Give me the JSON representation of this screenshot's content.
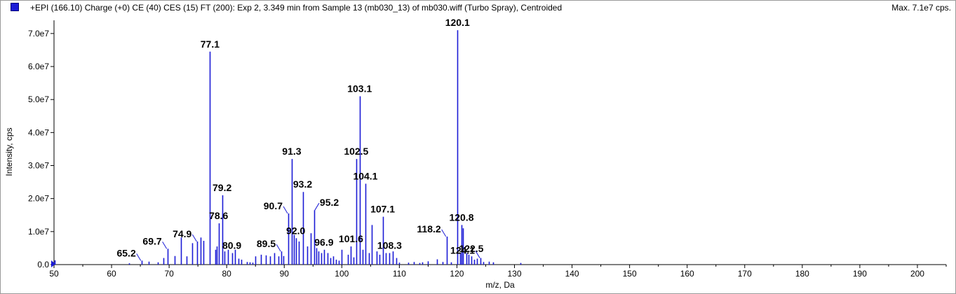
{
  "header": {
    "title": "+EPI (166.10) Charge (+0) CE (40) CES (15) FT (200): Exp 2, 3.349 min from Sample 13 (mb030_13) of mb030.wiff (Turbo Spray), Centroided",
    "max_label": "Max. 7.1e7 cps."
  },
  "colors": {
    "series": "#1b1bd6",
    "axis": "#000000",
    "leader": "#1b1bd6",
    "background": "#ffffff"
  },
  "chart_data": {
    "type": "bar",
    "xlabel": "m/z, Da",
    "ylabel": "Intensity, cps",
    "xlim": [
      50,
      205
    ],
    "ylim": [
      0,
      74000000
    ],
    "x_ticks": [
      50,
      60,
      70,
      80,
      90,
      100,
      110,
      120,
      130,
      140,
      150,
      160,
      170,
      180,
      190,
      200
    ],
    "y_ticks": [
      {
        "value": 0,
        "label": "0.0"
      },
      {
        "value": 10000000,
        "label": "1.0e7"
      },
      {
        "value": 20000000,
        "label": "2.0e7"
      },
      {
        "value": 30000000,
        "label": "3.0e7"
      },
      {
        "value": 40000000,
        "label": "4.0e7"
      },
      {
        "value": 50000000,
        "label": "5.0e7"
      },
      {
        "value": 60000000,
        "label": "6.0e7"
      },
      {
        "value": 70000000,
        "label": "7.0e7"
      }
    ],
    "peaks": [
      {
        "x": 50.1,
        "y": 1300000
      },
      {
        "x": 63.0,
        "y": 400000
      },
      {
        "x": 65.2,
        "y": 1200000
      },
      {
        "x": 66.5,
        "y": 900000
      },
      {
        "x": 68.0,
        "y": 700000
      },
      {
        "x": 69.0,
        "y": 2000000
      },
      {
        "x": 69.7,
        "y": 4800000
      },
      {
        "x": 71.0,
        "y": 2600000
      },
      {
        "x": 72.0,
        "y": 8200000
      },
      {
        "x": 73.0,
        "y": 2500000
      },
      {
        "x": 74.0,
        "y": 6500000
      },
      {
        "x": 74.9,
        "y": 7000000
      },
      {
        "x": 75.5,
        "y": 8200000
      },
      {
        "x": 76.0,
        "y": 7200000
      },
      {
        "x": 77.1,
        "y": 64500000
      },
      {
        "x": 78.0,
        "y": 4500000
      },
      {
        "x": 78.3,
        "y": 5500000
      },
      {
        "x": 78.6,
        "y": 12500000
      },
      {
        "x": 79.2,
        "y": 21000000
      },
      {
        "x": 79.6,
        "y": 4000000
      },
      {
        "x": 80.2,
        "y": 4500000
      },
      {
        "x": 80.9,
        "y": 3500000
      },
      {
        "x": 81.4,
        "y": 4500000
      },
      {
        "x": 82.0,
        "y": 1800000
      },
      {
        "x": 82.5,
        "y": 1500000
      },
      {
        "x": 83.5,
        "y": 800000
      },
      {
        "x": 84.0,
        "y": 700000
      },
      {
        "x": 84.5,
        "y": 600000
      },
      {
        "x": 85.0,
        "y": 2500000
      },
      {
        "x": 86.0,
        "y": 3000000
      },
      {
        "x": 86.8,
        "y": 2800000
      },
      {
        "x": 87.5,
        "y": 2500000
      },
      {
        "x": 88.3,
        "y": 3500000
      },
      {
        "x": 89.0,
        "y": 2500000
      },
      {
        "x": 89.5,
        "y": 4000000
      },
      {
        "x": 89.9,
        "y": 2600000
      },
      {
        "x": 90.7,
        "y": 15500000
      },
      {
        "x": 91.3,
        "y": 32000000
      },
      {
        "x": 91.7,
        "y": 9000000
      },
      {
        "x": 92.0,
        "y": 8000000
      },
      {
        "x": 92.5,
        "y": 7000000
      },
      {
        "x": 93.2,
        "y": 22000000
      },
      {
        "x": 94.0,
        "y": 5500000
      },
      {
        "x": 94.6,
        "y": 9500000
      },
      {
        "x": 95.2,
        "y": 16500000
      },
      {
        "x": 95.6,
        "y": 5000000
      },
      {
        "x": 96.0,
        "y": 4000000
      },
      {
        "x": 96.4,
        "y": 3500000
      },
      {
        "x": 96.9,
        "y": 4500000
      },
      {
        "x": 97.5,
        "y": 3500000
      },
      {
        "x": 98.0,
        "y": 2000000
      },
      {
        "x": 98.5,
        "y": 2500000
      },
      {
        "x": 99.0,
        "y": 1500000
      },
      {
        "x": 99.5,
        "y": 1200000
      },
      {
        "x": 100.0,
        "y": 4500000
      },
      {
        "x": 101.0,
        "y": 3000000
      },
      {
        "x": 101.6,
        "y": 5500000
      },
      {
        "x": 102.0,
        "y": 2200000
      },
      {
        "x": 102.5,
        "y": 32000000
      },
      {
        "x": 103.1,
        "y": 51000000
      },
      {
        "x": 103.6,
        "y": 4500000
      },
      {
        "x": 104.1,
        "y": 24500000
      },
      {
        "x": 104.7,
        "y": 3500000
      },
      {
        "x": 105.2,
        "y": 12000000
      },
      {
        "x": 106.0,
        "y": 4000000
      },
      {
        "x": 106.5,
        "y": 3000000
      },
      {
        "x": 107.1,
        "y": 14500000
      },
      {
        "x": 107.6,
        "y": 3500000
      },
      {
        "x": 108.3,
        "y": 3500000
      },
      {
        "x": 108.8,
        "y": 4000000
      },
      {
        "x": 109.5,
        "y": 2000000
      },
      {
        "x": 110.0,
        "y": 600000
      },
      {
        "x": 111.5,
        "y": 600000
      },
      {
        "x": 112.5,
        "y": 800000
      },
      {
        "x": 113.5,
        "y": 500000
      },
      {
        "x": 114.0,
        "y": 700000
      },
      {
        "x": 115.0,
        "y": 1000000
      },
      {
        "x": 116.5,
        "y": 1600000
      },
      {
        "x": 117.5,
        "y": 800000
      },
      {
        "x": 118.2,
        "y": 8500000
      },
      {
        "x": 119.0,
        "y": 700000
      },
      {
        "x": 120.1,
        "y": 71000000
      },
      {
        "x": 120.5,
        "y": 3500000
      },
      {
        "x": 120.8,
        "y": 12000000
      },
      {
        "x": 121.1,
        "y": 11000000
      },
      {
        "x": 121.6,
        "y": 3500000
      },
      {
        "x": 122.0,
        "y": 3000000
      },
      {
        "x": 122.5,
        "y": 2500000
      },
      {
        "x": 123.0,
        "y": 1500000
      },
      {
        "x": 123.5,
        "y": 1800000
      },
      {
        "x": 124.1,
        "y": 2000000
      },
      {
        "x": 124.6,
        "y": 800000
      },
      {
        "x": 125.5,
        "y": 900000
      },
      {
        "x": 126.3,
        "y": 700000
      },
      {
        "x": 131.0,
        "y": 500000
      }
    ],
    "annotations": [
      {
        "label": "77.1",
        "peak_x": 77.1,
        "peak_y": 64500000,
        "leader": "none"
      },
      {
        "label": "79.2",
        "peak_x": 79.2,
        "peak_y": 21000000,
        "leader": "none"
      },
      {
        "label": "78.6",
        "peak_x": 78.6,
        "peak_y": 12500000,
        "leader": "none"
      },
      {
        "label": "74.9",
        "peak_x": 74.9,
        "peak_y": 7000000,
        "leader": "left"
      },
      {
        "label": "69.7",
        "peak_x": 69.7,
        "peak_y": 4800000,
        "leader": "left"
      },
      {
        "label": "65.2",
        "peak_x": 65.2,
        "peak_y": 1200000,
        "leader": "left"
      },
      {
        "label": "80.9",
        "peak_x": 80.9,
        "peak_y": 3500000,
        "leader": "none"
      },
      {
        "label": "89.5",
        "peak_x": 89.5,
        "peak_y": 4000000,
        "leader": "left"
      },
      {
        "label": "90.7",
        "peak_x": 90.7,
        "peak_y": 15500000,
        "leader": "left"
      },
      {
        "label": "91.3",
        "peak_x": 91.3,
        "peak_y": 32000000,
        "leader": "none"
      },
      {
        "label": "92.0",
        "peak_x": 92.0,
        "peak_y": 8000000,
        "leader": "none"
      },
      {
        "label": "93.2",
        "peak_x": 93.2,
        "peak_y": 22000000,
        "leader": "none"
      },
      {
        "label": "95.2",
        "peak_x": 95.2,
        "peak_y": 16500000,
        "leader": "right"
      },
      {
        "label": "96.9",
        "peak_x": 96.9,
        "peak_y": 4500000,
        "leader": "none"
      },
      {
        "label": "101.6",
        "peak_x": 101.6,
        "peak_y": 5500000,
        "leader": "none"
      },
      {
        "label": "102.5",
        "peak_x": 102.5,
        "peak_y": 32000000,
        "leader": "none"
      },
      {
        "label": "103.1",
        "peak_x": 103.1,
        "peak_y": 51000000,
        "leader": "none"
      },
      {
        "label": "104.1",
        "peak_x": 104.1,
        "peak_y": 24500000,
        "leader": "none"
      },
      {
        "label": "107.1",
        "peak_x": 107.1,
        "peak_y": 14500000,
        "leader": "none"
      },
      {
        "label": "108.3",
        "peak_x": 108.3,
        "peak_y": 3500000,
        "leader": "none"
      },
      {
        "label": "118.2",
        "peak_x": 118.2,
        "peak_y": 8500000,
        "leader": "left"
      },
      {
        "label": "120.1",
        "peak_x": 120.1,
        "peak_y": 71000000,
        "leader": "none"
      },
      {
        "label": "120.8",
        "peak_x": 120.8,
        "peak_y": 12000000,
        "leader": "none"
      },
      {
        "label": "122.5",
        "peak_x": 122.5,
        "peak_y": 2500000,
        "leader": "none"
      },
      {
        "label": "124.1",
        "peak_x": 124.1,
        "peak_y": 2000000,
        "leader": "left"
      }
    ],
    "grid": false,
    "legend": "top-left"
  }
}
